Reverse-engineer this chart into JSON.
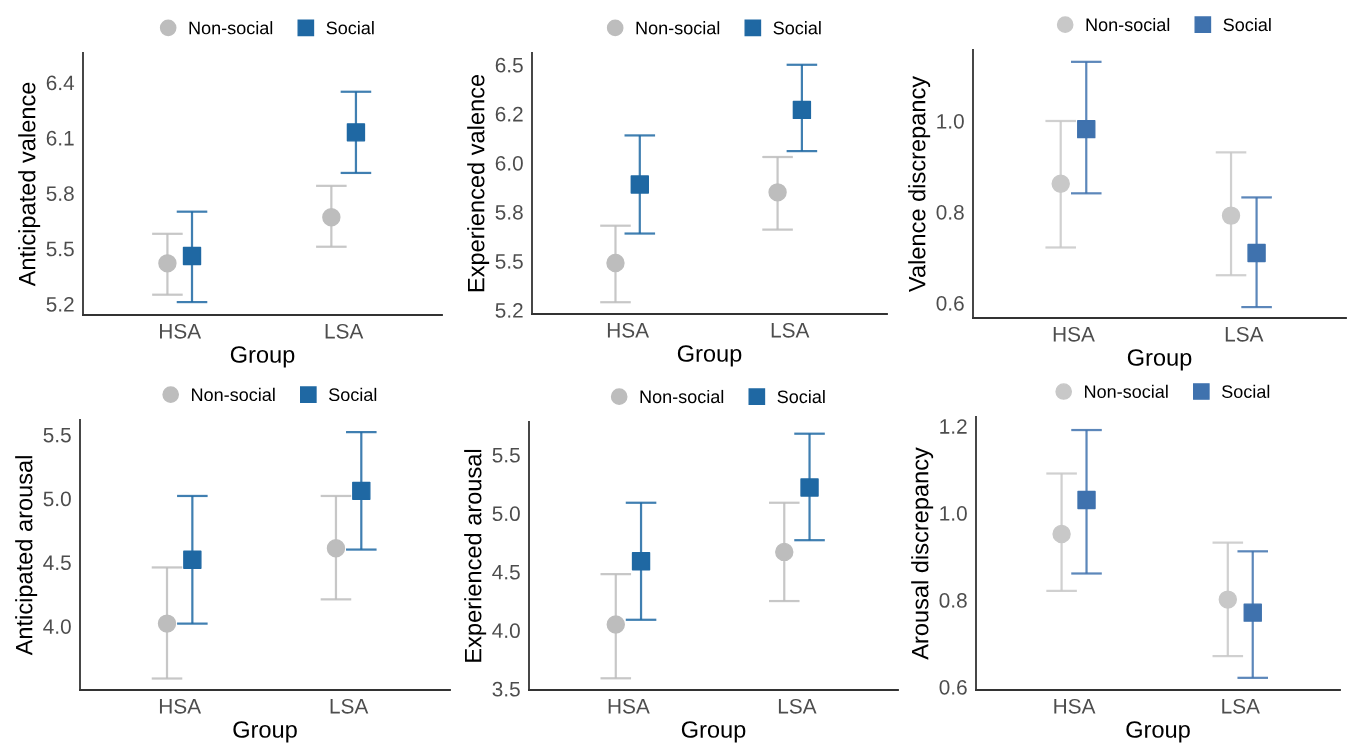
{
  "chart_data": [
    {
      "type": "scatter",
      "xlabel": "Group",
      "ylabel": "Anticipated valence",
      "categories": [
        "HSA",
        "LSA"
      ],
      "ylim": [
        5.14,
        6.56
      ],
      "yticks": [
        5.2,
        5.5,
        5.8,
        6.1,
        6.4
      ],
      "legend": "top",
      "grid": false,
      "series": [
        {
          "name": "Non-social",
          "color": "#bdbdbd",
          "marker": "circle",
          "values": [
            5.42,
            5.67
          ],
          "errors": [
            [
              5.25,
              5.58
            ],
            [
              5.51,
              5.84
            ]
          ]
        },
        {
          "name": "Social",
          "color": "#1f68a3",
          "marker": "square",
          "values": [
            5.46,
            6.13
          ],
          "errors": [
            [
              5.21,
              5.7
            ],
            [
              5.91,
              6.35
            ]
          ]
        }
      ]
    },
    {
      "type": "scatter",
      "xlabel": "Group",
      "ylabel": "Experienced valence",
      "categories": [
        "HSA",
        "LSA"
      ],
      "ylim": [
        5.23,
        6.56
      ],
      "yticks": [
        {
          "value": 5.25,
          "label": "5.2"
        },
        {
          "value": 5.5,
          "label": "5.5"
        },
        {
          "value": 5.75,
          "label": "5.8"
        },
        {
          "value": 6.0,
          "label": "6.0"
        },
        {
          "value": 6.25,
          "label": "6.2"
        },
        {
          "value": 6.5,
          "label": "6.5"
        }
      ],
      "legend": "top",
      "grid": false,
      "series": [
        {
          "name": "Non-social",
          "color": "#bdbdbd",
          "marker": "circle",
          "values": [
            5.49,
            5.85
          ],
          "errors": [
            [
              5.29,
              5.68
            ],
            [
              5.66,
              6.03
            ]
          ]
        },
        {
          "name": "Social",
          "color": "#1f68a3",
          "marker": "square",
          "values": [
            5.89,
            6.27
          ],
          "errors": [
            [
              5.64,
              6.14
            ],
            [
              6.06,
              6.5
            ]
          ]
        }
      ]
    },
    {
      "type": "scatter",
      "xlabel": "Group",
      "ylabel": "Valence discrepancy",
      "categories": [
        "HSA",
        "LSA"
      ],
      "ylim": [
        0.567,
        1.156
      ],
      "yticks": [
        {
          "value": 0.6,
          "label": "0.6"
        },
        {
          "value": 0.8,
          "label": "0.8"
        },
        {
          "value": 1.0,
          "label": "1.0"
        }
      ],
      "legend": "top",
      "grid": false,
      "series": [
        {
          "name": "Non-social",
          "color": "#c8c8c8",
          "marker": "circle",
          "values": [
            0.862,
            0.792
          ],
          "errors": [
            [
              0.722,
              1.0
            ],
            [
              0.661,
              0.931
            ]
          ]
        },
        {
          "name": "Social",
          "color": "#3f72ae",
          "marker": "square",
          "values": [
            0.982,
            0.71
          ],
          "errors": [
            [
              0.841,
              1.13
            ],
            [
              0.591,
              0.832
            ]
          ]
        }
      ]
    },
    {
      "type": "scatter",
      "xlabel": "Group",
      "ylabel": "Anticipated arousal",
      "categories": [
        "HSA",
        "LSA"
      ],
      "ylim": [
        3.5,
        5.615
      ],
      "yticks": [
        {
          "value": 4.0,
          "label": "4.0"
        },
        {
          "value": 4.5,
          "label": "4.5"
        },
        {
          "value": 5.0,
          "label": "5.0"
        },
        {
          "value": 5.5,
          "label": "5.5"
        }
      ],
      "legend": "top",
      "grid": false,
      "series": [
        {
          "name": "Non-social",
          "color": "#bdbdbd",
          "marker": "circle",
          "values": [
            4.02,
            4.61
          ],
          "errors": [
            [
              3.59,
              4.46
            ],
            [
              4.21,
              5.02
            ]
          ]
        },
        {
          "name": "Social",
          "color": "#1f68a3",
          "marker": "square",
          "values": [
            4.52,
            5.06
          ],
          "errors": [
            [
              4.02,
              5.02
            ],
            [
              4.6,
              5.52
            ]
          ]
        }
      ]
    },
    {
      "type": "scatter",
      "xlabel": "Group",
      "ylabel": "Experienced arousal",
      "categories": [
        "HSA",
        "LSA"
      ],
      "ylim": [
        3.49,
        5.78
      ],
      "yticks": [
        {
          "value": 3.5,
          "label": "3.5"
        },
        {
          "value": 4.0,
          "label": "4.0"
        },
        {
          "value": 4.5,
          "label": "4.5"
        },
        {
          "value": 5.0,
          "label": "5.0"
        },
        {
          "value": 5.5,
          "label": "5.5"
        }
      ],
      "legend": "top",
      "grid": false,
      "series": [
        {
          "name": "Non-social",
          "color": "#bdbdbd",
          "marker": "circle",
          "values": [
            4.05,
            4.67
          ],
          "errors": [
            [
              3.59,
              4.48
            ],
            [
              4.25,
              5.09
            ]
          ]
        },
        {
          "name": "Social",
          "color": "#1f68a3",
          "marker": "square",
          "values": [
            4.59,
            5.22
          ],
          "errors": [
            [
              4.09,
              5.09
            ],
            [
              4.77,
              5.68
            ]
          ]
        }
      ]
    },
    {
      "type": "scatter",
      "xlabel": "Group",
      "ylabel": "Arousal discrepancy",
      "categories": [
        "HSA",
        "LSA"
      ],
      "ylim": [
        0.593,
        1.221
      ],
      "yticks": [
        {
          "value": 0.6,
          "label": "0.6"
        },
        {
          "value": 0.8,
          "label": "0.8"
        },
        {
          "value": 1.0,
          "label": "1.0"
        },
        {
          "value": 1.2,
          "label": "1.2"
        }
      ],
      "legend": "top",
      "grid": false,
      "series": [
        {
          "name": "Non-social",
          "color": "#c8c8c8",
          "marker": "circle",
          "values": [
            0.952,
            0.801
          ],
          "errors": [
            [
              0.821,
              1.091
            ],
            [
              0.671,
              0.932
            ]
          ]
        },
        {
          "name": "Social",
          "color": "#3f72ae",
          "marker": "square",
          "values": [
            1.03,
            0.771
          ],
          "errors": [
            [
              0.861,
              1.191
            ],
            [
              0.621,
              0.912
            ]
          ]
        }
      ]
    }
  ]
}
